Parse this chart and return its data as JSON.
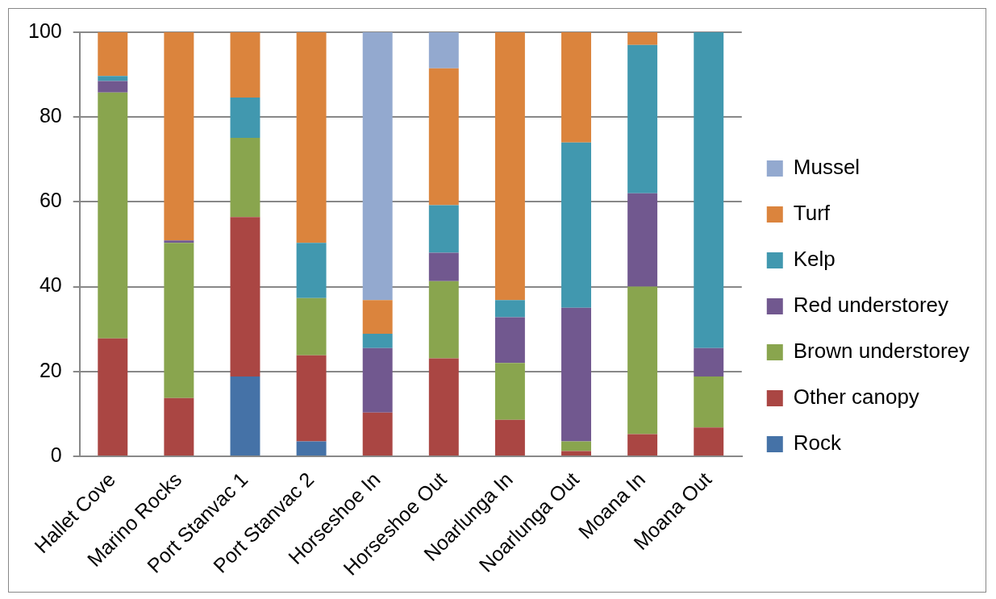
{
  "chart_data": {
    "type": "bar",
    "stacked": true,
    "categories": [
      "Hallet Cove",
      "Marino Rocks",
      "Port Stanvac 1",
      "Port Stanvac 2",
      "Horseshoe In",
      "Horseshoe Out",
      "Noarlunga In",
      "Noarlunga Out",
      "Moana In",
      "Moana Out"
    ],
    "series": [
      {
        "name": "Rock",
        "color": "#4572a7",
        "values": [
          0,
          0,
          18.8,
          3.5,
          0,
          0,
          0,
          0,
          0,
          0
        ]
      },
      {
        "name": "Other canopy",
        "color": "#aa4643",
        "values": [
          27.8,
          13.7,
          37.6,
          20.3,
          10.3,
          23.1,
          8.6,
          1.2,
          5.2,
          6.8
        ]
      },
      {
        "name": "Brown understorey",
        "color": "#89a54e",
        "values": [
          58,
          36.6,
          18.7,
          13.5,
          0,
          18.2,
          13.4,
          2.3,
          34.8,
          12
        ]
      },
      {
        "name": "Red understorey",
        "color": "#71588f",
        "values": [
          2.7,
          0.6,
          0,
          0,
          15.2,
          6.7,
          10.8,
          31.5,
          22,
          6.7
        ]
      },
      {
        "name": "Kelp",
        "color": "#4198af",
        "values": [
          1.2,
          0,
          9.5,
          13,
          3.4,
          11.2,
          4,
          39,
          35,
          74.5
        ]
      },
      {
        "name": "Turf",
        "color": "#db843d",
        "values": [
          10.3,
          49.1,
          15.4,
          49.7,
          7.9,
          32.3,
          63.2,
          26,
          3,
          0
        ]
      },
      {
        "name": "Mussel",
        "color": "#93a9cf",
        "values": [
          0,
          0,
          0,
          0,
          63.2,
          8.5,
          0,
          0,
          0,
          0
        ]
      }
    ],
    "ylim": [
      0,
      100
    ],
    "yticks": [
      0,
      20,
      40,
      60,
      80,
      100
    ],
    "grid": "y",
    "legend": "right"
  }
}
